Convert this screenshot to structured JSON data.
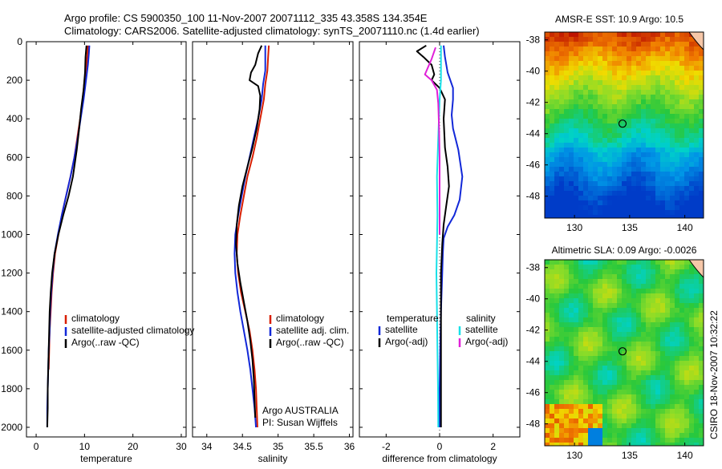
{
  "header": {
    "line1": "Argo profile: CS 5900350_100 11-Nov-2007 20071112_335 43.358S 134.354E",
    "line2": "Climatology: CARS2006. Satellite-adjusted climatology: synTS_20071110.nc (1.4d earlier)"
  },
  "credit": "CSIRO 18-Nov-2007 10:32:22",
  "colors": {
    "red": "#d81e00",
    "blue": "#1228d8",
    "black": "#000000",
    "cyan": "#18e0e8",
    "magenta": "#e020d8"
  },
  "chart_data": [
    {
      "type": "line",
      "name": "temperature",
      "xlabel": "temperature",
      "ylabel": "",
      "xlim": [
        -2,
        31
      ],
      "ylim": [
        2050,
        0
      ],
      "xticks": [
        0,
        10,
        20,
        30
      ],
      "yticks": [
        0,
        200,
        400,
        600,
        800,
        1000,
        1200,
        1400,
        1600,
        1800,
        2000
      ],
      "legend": [
        "climatology",
        "satellite-adjusted climatology",
        "Argo(..raw -QC)"
      ],
      "series": [
        {
          "name": "climatology",
          "color": "red",
          "points": [
            [
              10.7,
              20
            ],
            [
              10.6,
              60
            ],
            [
              10.4,
              120
            ],
            [
              10.0,
              200
            ],
            [
              9.6,
              300
            ],
            [
              9.1,
              400
            ],
            [
              8.5,
              500
            ],
            [
              7.9,
              600
            ],
            [
              7.1,
              700
            ],
            [
              6.2,
              800
            ],
            [
              5.3,
              900
            ],
            [
              4.6,
              1000
            ],
            [
              3.9,
              1100
            ],
            [
              3.5,
              1200
            ],
            [
              3.2,
              1300
            ],
            [
              3.0,
              1400
            ],
            [
              2.8,
              1500
            ],
            [
              2.7,
              1600
            ],
            [
              2.6,
              1700
            ]
          ]
        },
        {
          "name": "satellite-adjusted climatology",
          "color": "blue",
          "points": [
            [
              11.0,
              20
            ],
            [
              10.9,
              60
            ],
            [
              10.7,
              120
            ],
            [
              10.3,
              200
            ],
            [
              9.8,
              300
            ],
            [
              9.2,
              400
            ],
            [
              8.6,
              500
            ],
            [
              7.9,
              600
            ],
            [
              7.1,
              700
            ],
            [
              6.2,
              800
            ],
            [
              5.3,
              900
            ],
            [
              4.5,
              1000
            ],
            [
              3.8,
              1100
            ],
            [
              3.4,
              1200
            ],
            [
              3.1,
              1300
            ],
            [
              2.9,
              1400
            ],
            [
              2.8,
              1500
            ],
            [
              2.6,
              1600
            ],
            [
              2.5,
              1700
            ],
            [
              2.4,
              1800
            ],
            [
              2.3,
              1900
            ],
            [
              2.3,
              2000
            ]
          ]
        },
        {
          "name": "Argo(..raw -QC)",
          "color": "black",
          "points": [
            [
              10.4,
              20
            ],
            [
              10.2,
              80
            ],
            [
              10.1,
              160
            ],
            [
              9.8,
              250
            ],
            [
              9.3,
              350
            ],
            [
              8.9,
              450
            ],
            [
              8.4,
              560
            ],
            [
              7.6,
              700
            ],
            [
              6.7,
              800
            ],
            [
              5.6,
              900
            ],
            [
              4.6,
              1000
            ],
            [
              3.8,
              1100
            ],
            [
              3.3,
              1200
            ],
            [
              3.0,
              1300
            ],
            [
              2.8,
              1400
            ],
            [
              2.7,
              1500
            ],
            [
              2.6,
              1600
            ],
            [
              2.5,
              1700
            ],
            [
              2.4,
              1800
            ],
            [
              2.4,
              1900
            ],
            [
              2.3,
              2000
            ]
          ]
        }
      ]
    },
    {
      "type": "line",
      "name": "salinity",
      "xlabel": "salinity",
      "ylabel": "",
      "xlim": [
        33.8,
        36.05
      ],
      "ylim": [
        2050,
        0
      ],
      "xticks": [
        34,
        34.5,
        35,
        35.5,
        36
      ],
      "legend": [
        "climatology",
        "satellite adj. clim.",
        "Argo(..raw -QC)"
      ],
      "annotation": [
        "Argo AUSTRALIA",
        "PI: Susan Wijffels"
      ],
      "series": [
        {
          "name": "climatology",
          "color": "red",
          "points": [
            [
              34.87,
              20
            ],
            [
              34.86,
              80
            ],
            [
              34.85,
              150
            ],
            [
              34.82,
              220
            ],
            [
              34.8,
              300
            ],
            [
              34.75,
              400
            ],
            [
              34.7,
              500
            ],
            [
              34.64,
              600
            ],
            [
              34.57,
              700
            ],
            [
              34.52,
              800
            ],
            [
              34.47,
              900
            ],
            [
              34.43,
              1000
            ],
            [
              34.42,
              1100
            ],
            [
              34.44,
              1200
            ],
            [
              34.48,
              1300
            ],
            [
              34.54,
              1400
            ],
            [
              34.6,
              1500
            ],
            [
              34.64,
              1600
            ],
            [
              34.67,
              1700
            ],
            [
              34.69,
              1800
            ],
            [
              34.7,
              1900
            ],
            [
              34.71,
              2000
            ]
          ]
        },
        {
          "name": "satellite adj. clim.",
          "color": "blue",
          "points": [
            [
              34.82,
              20
            ],
            [
              34.82,
              80
            ],
            [
              34.82,
              150
            ],
            [
              34.79,
              220
            ],
            [
              34.77,
              300
            ],
            [
              34.72,
              400
            ],
            [
              34.66,
              500
            ],
            [
              34.6,
              600
            ],
            [
              34.54,
              700
            ],
            [
              34.49,
              800
            ],
            [
              34.44,
              900
            ],
            [
              34.4,
              1000
            ],
            [
              34.39,
              1100
            ],
            [
              34.4,
              1200
            ],
            [
              34.43,
              1300
            ],
            [
              34.47,
              1400
            ],
            [
              34.52,
              1500
            ],
            [
              34.57,
              1600
            ],
            [
              34.61,
              1700
            ],
            [
              34.64,
              1800
            ],
            [
              34.67,
              1900
            ],
            [
              34.69,
              2000
            ]
          ]
        },
        {
          "name": "Argo(..raw -QC)",
          "color": "black",
          "points": [
            [
              34.77,
              20
            ],
            [
              34.72,
              60
            ],
            [
              34.68,
              120
            ],
            [
              34.62,
              160
            ],
            [
              34.6,
              200
            ],
            [
              34.72,
              230
            ],
            [
              34.75,
              280
            ],
            [
              34.74,
              350
            ],
            [
              34.7,
              450
            ],
            [
              34.64,
              550
            ],
            [
              34.57,
              650
            ],
            [
              34.5,
              750
            ],
            [
              34.45,
              850
            ],
            [
              34.42,
              950
            ],
            [
              34.41,
              1050
            ],
            [
              34.43,
              1150
            ],
            [
              34.47,
              1250
            ],
            [
              34.52,
              1350
            ],
            [
              34.57,
              1450
            ],
            [
              34.61,
              1550
            ],
            [
              34.64,
              1650
            ],
            [
              34.66,
              1750
            ],
            [
              34.67,
              1850
            ],
            [
              34.68,
              1950
            ]
          ]
        }
      ]
    },
    {
      "type": "line",
      "name": "difference from climatology",
      "xlabel": "difference from climatology",
      "ylabel": "",
      "xlim": [
        -3,
        3
      ],
      "ylim": [
        2050,
        0
      ],
      "xticks": [
        -2,
        0,
        2
      ],
      "legend_headers": [
        "temperature",
        "salinity"
      ],
      "legend": [
        "satellite",
        "Argo(-adj)",
        "satellite",
        "Argo(-adj)"
      ],
      "series": [
        {
          "name": "temperature satellite",
          "color": "blue",
          "points": [
            [
              0.15,
              20
            ],
            [
              0.2,
              80
            ],
            [
              0.3,
              160
            ],
            [
              0.5,
              240
            ],
            [
              0.5,
              300
            ],
            [
              0.45,
              380
            ],
            [
              0.5,
              450
            ],
            [
              0.7,
              560
            ],
            [
              0.85,
              700
            ],
            [
              0.75,
              820
            ],
            [
              0.55,
              900
            ],
            [
              0.3,
              960
            ],
            [
              0.15,
              1020
            ],
            [
              0.12,
              1100
            ],
            [
              0.1,
              1200
            ],
            [
              0.05,
              1400
            ],
            [
              0.02,
              1600
            ],
            [
              0.0,
              1800
            ],
            [
              0.0,
              2000
            ]
          ]
        },
        {
          "name": "temperature Argo(-adj)",
          "color": "black",
          "points": [
            [
              -0.5,
              20
            ],
            [
              -0.85,
              50
            ],
            [
              -0.6,
              80
            ],
            [
              -0.3,
              120
            ],
            [
              -0.2,
              170
            ],
            [
              -0.3,
              200
            ],
            [
              0.0,
              240
            ],
            [
              0.2,
              300
            ],
            [
              0.15,
              400
            ],
            [
              0.2,
              550
            ],
            [
              0.3,
              650
            ],
            [
              0.35,
              750
            ],
            [
              0.25,
              850
            ],
            [
              0.15,
              950
            ],
            [
              0.1,
              1050
            ],
            [
              0.05,
              1200
            ],
            [
              0.05,
              1400
            ],
            [
              0.05,
              1600
            ],
            [
              0.05,
              1800
            ],
            [
              0.05,
              2000
            ]
          ]
        },
        {
          "name": "salinity satellite",
          "color": "cyan",
          "points": [
            [
              0.05,
              20
            ],
            [
              0.05,
              100
            ],
            [
              0.05,
              200
            ],
            [
              0.0,
              300
            ],
            [
              -0.05,
              500
            ],
            [
              -0.1,
              700
            ],
            [
              -0.08,
              900
            ],
            [
              -0.1,
              1050
            ],
            [
              -0.12,
              1200
            ],
            [
              -0.1,
              1400
            ],
            [
              -0.08,
              1600
            ],
            [
              -0.06,
              1800
            ],
            [
              -0.05,
              2000
            ]
          ]
        },
        {
          "name": "salinity Argo(-adj)",
          "color": "magenta",
          "points": [
            [
              -0.15,
              30
            ],
            [
              -0.3,
              90
            ],
            [
              -0.55,
              170
            ],
            [
              -0.3,
              200
            ],
            [
              -0.1,
              250
            ],
            [
              -0.05,
              320
            ],
            [
              -0.02,
              450
            ],
            [
              0.0,
              600
            ],
            [
              0.0,
              800
            ],
            [
              0.0,
              1000
            ]
          ]
        }
      ]
    },
    {
      "type": "heatmap",
      "name": "AMSR-E SST",
      "title": "AMSR-E SST: 10.9  Argo: 10.5",
      "xlim": [
        127.3,
        141.7
      ],
      "ylim": [
        -49.4,
        -37.5
      ],
      "xticks": [
        130,
        135,
        140
      ],
      "yticks": [
        -38,
        -40,
        -42,
        -44,
        -46,
        -48
      ],
      "marker": [
        134.354,
        -43.358
      ]
    },
    {
      "type": "heatmap",
      "name": "Altimetric SLA",
      "title": "Altimetric SLA: 0.09  Argo: -0.0026",
      "xlim": [
        127.3,
        141.7
      ],
      "ylim": [
        -49.4,
        -37.5
      ],
      "xticks": [
        130,
        135,
        140
      ],
      "yticks": [
        -38,
        -40,
        -42,
        -44,
        -46,
        -48
      ],
      "marker": [
        134.354,
        -43.358
      ]
    }
  ]
}
